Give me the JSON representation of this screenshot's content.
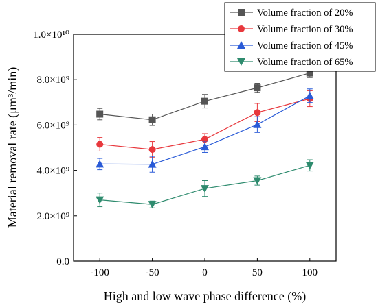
{
  "chart_data": {
    "type": "line",
    "xlabel": "High and low wave phase difference (%)",
    "ylabel": "Material removal rate (μm³/min)",
    "x": [
      -100,
      -50,
      0,
      50,
      100
    ],
    "xlim": [
      -125,
      125
    ],
    "xticks": [
      -100,
      -50,
      0,
      50,
      100
    ],
    "ylim": [
      0,
      10000000000
    ],
    "yticks": [
      0,
      2000000000,
      4000000000,
      6000000000,
      8000000000,
      10000000000
    ],
    "ytick_labels": [
      "0.0",
      "2.0×10⁹",
      "4.0×10⁹",
      "6.0×10⁹",
      "8.0×10⁹",
      "1.0×10¹⁰"
    ],
    "grid": false,
    "legend_position": "top-right",
    "series": [
      {
        "name": "Volume fraction of 20%",
        "color": "#555555",
        "marker": "square",
        "values": [
          6480000000,
          6230000000,
          7050000000,
          7640000000,
          8290000000
        ],
        "errors": [
          250000000,
          250000000,
          300000000,
          200000000,
          200000000
        ]
      },
      {
        "name": "Volume fraction of 30%",
        "color": "#e8383d",
        "marker": "circle",
        "values": [
          5150000000,
          4920000000,
          5370000000,
          6550000000,
          7160000000
        ],
        "errors": [
          300000000,
          350000000,
          250000000,
          400000000,
          350000000
        ]
      },
      {
        "name": "Volume fraction of 45%",
        "color": "#2a5bd7",
        "marker": "triangle-up",
        "values": [
          4280000000,
          4270000000,
          5040000000,
          6020000000,
          7290000000
        ],
        "errors": [
          250000000,
          350000000,
          250000000,
          350000000,
          300000000
        ]
      },
      {
        "name": "Volume fraction of 65%",
        "color": "#2e8b6e",
        "marker": "triangle-down",
        "values": [
          2700000000,
          2500000000,
          3200000000,
          3550000000,
          4220000000
        ],
        "errors": [
          300000000,
          150000000,
          350000000,
          200000000,
          250000000
        ]
      }
    ]
  }
}
